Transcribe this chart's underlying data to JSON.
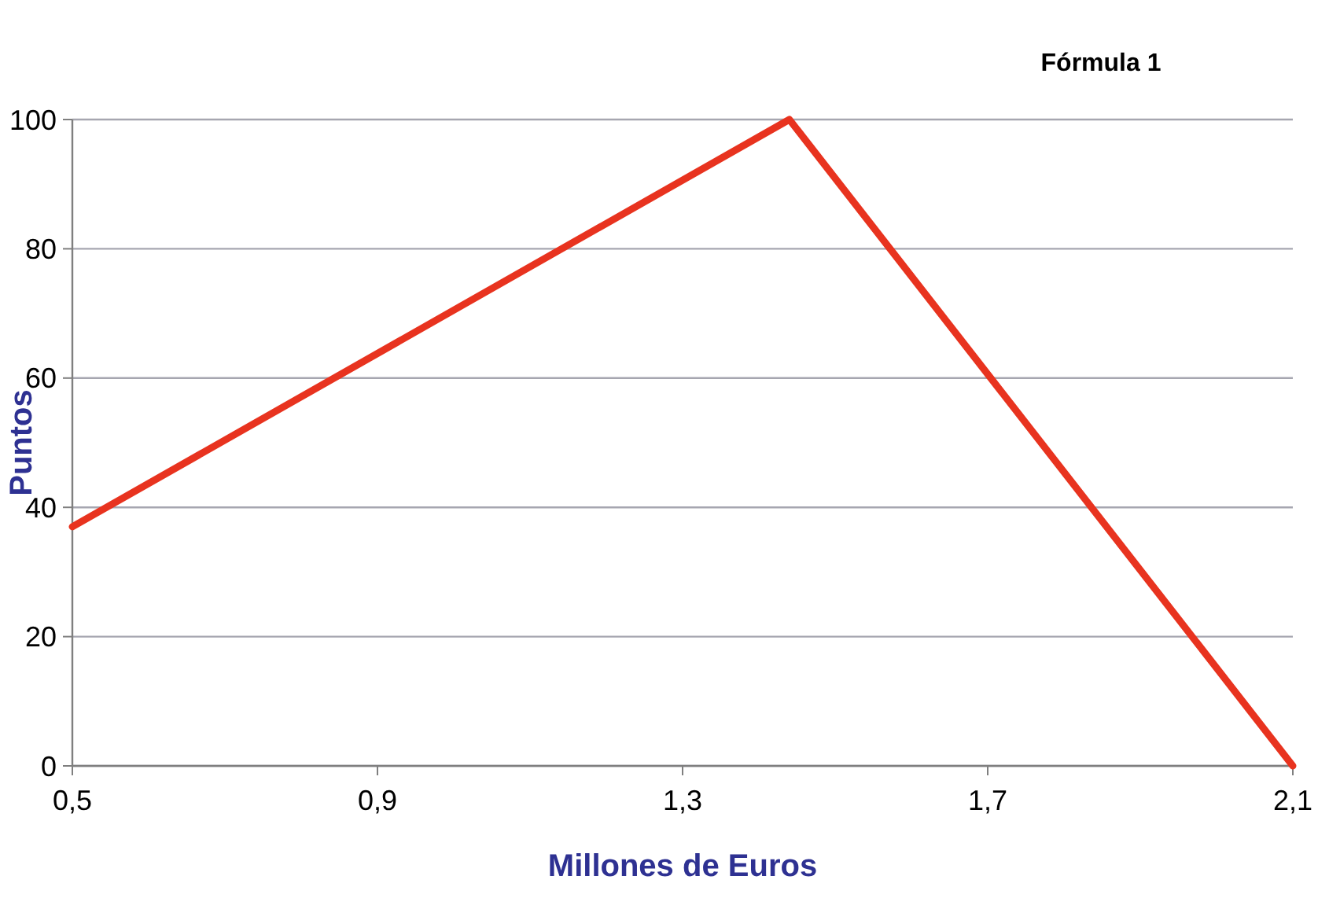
{
  "chart_data": {
    "type": "line",
    "title": "Fórmula 1",
    "xlabel": "Millones de Euros",
    "ylabel": "Puntos",
    "x": [
      0.5,
      1.44,
      2.1
    ],
    "series": [
      {
        "color": "#e8331f",
        "values": [
          37,
          100,
          0
        ]
      }
    ],
    "xlim": [
      0.5,
      2.1
    ],
    "xticks": [
      {
        "value": 0.5,
        "label": "0,5"
      },
      {
        "value": 0.9,
        "label": "0,9"
      },
      {
        "value": 1.3,
        "label": "1,3"
      },
      {
        "value": 1.7,
        "label": "1,7"
      },
      {
        "value": 2.1,
        "label": "2,1"
      }
    ],
    "ylim": [
      0,
      100
    ],
    "yticks": [
      0,
      20,
      40,
      60,
      80,
      100
    ],
    "grid": "y",
    "marker": "none"
  }
}
